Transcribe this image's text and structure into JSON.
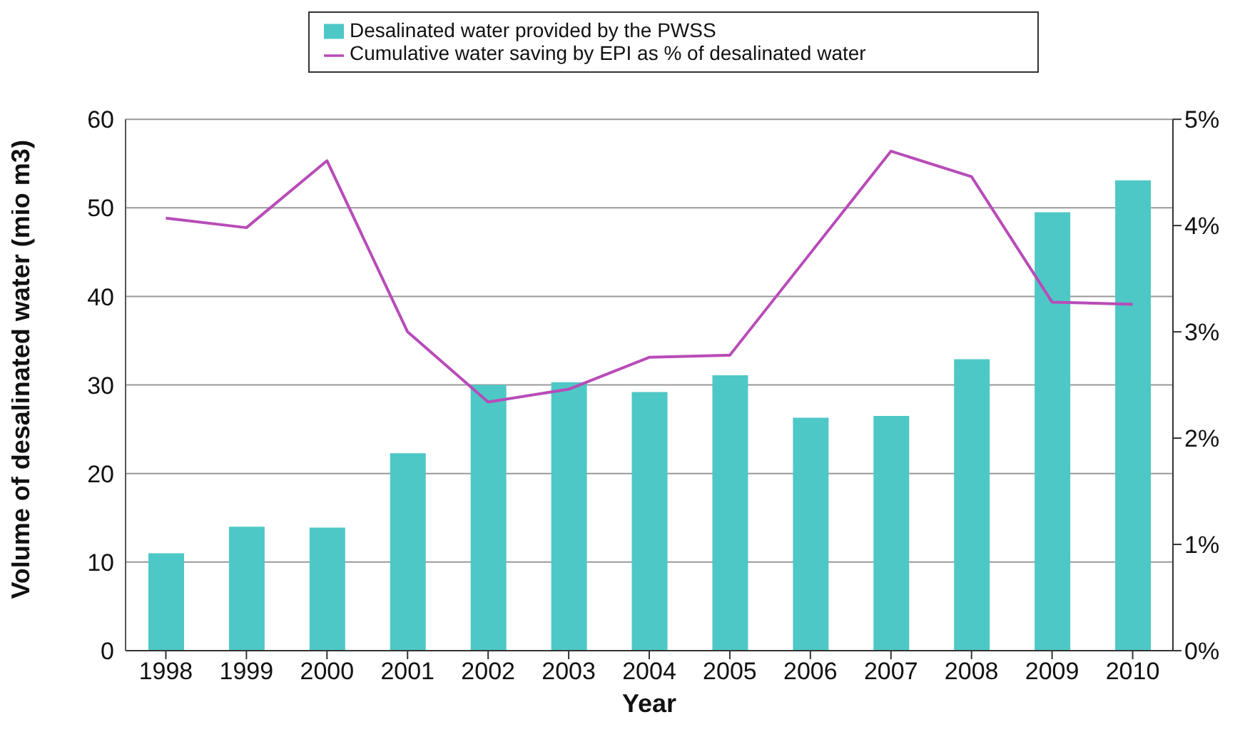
{
  "chart_data": {
    "type": "bar",
    "xlabel": "Year",
    "ylabel": "Volume of desalinated water (mio m3)",
    "categories": [
      "1998",
      "1999",
      "2000",
      "2001",
      "2002",
      "2003",
      "2004",
      "2005",
      "2006",
      "2007",
      "2008",
      "2009",
      "2010"
    ],
    "series": [
      {
        "name": "Desalinated water provided by the PWSS",
        "color": "#4ec8c6",
        "values": [
          11.0,
          14.0,
          13.9,
          22.3,
          30.0,
          30.3,
          29.2,
          31.1,
          26.3,
          26.5,
          32.9,
          49.5,
          53.1
        ]
      },
      {
        "name": "Cumulative water saving by EPI as % of desalinated water",
        "type": "line",
        "axis": "y2",
        "color": "#b84cb8",
        "values": [
          4.07,
          3.98,
          4.61,
          3.0,
          2.34,
          2.46,
          2.76,
          2.78,
          3.74,
          4.7,
          4.46,
          3.28,
          3.26
        ]
      }
    ],
    "ylim": [
      0,
      60
    ],
    "yticks": [
      0,
      10,
      20,
      30,
      40,
      50,
      60
    ],
    "y2lim": [
      0,
      5
    ],
    "y2ticks": [
      {
        "value": 0,
        "label": "0%"
      },
      {
        "value": 1,
        "label": "1%"
      },
      {
        "value": 2,
        "label": "2%"
      },
      {
        "value": 3,
        "label": "3%"
      },
      {
        "value": 4,
        "label": "4%"
      },
      {
        "value": 5,
        "label": "5%"
      }
    ],
    "grid": "y",
    "legend": "top",
    "marker": "none",
    "line_style": "solid"
  }
}
